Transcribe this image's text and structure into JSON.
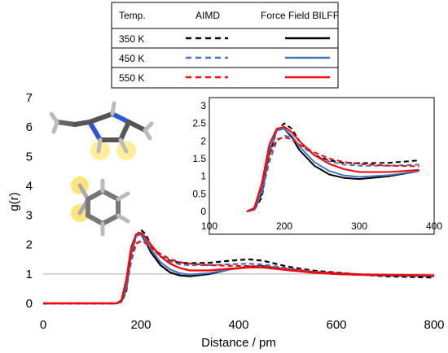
{
  "legend": {
    "headers": [
      "Temp.",
      "AIMD",
      "Force Field BILFF"
    ],
    "rows": [
      {
        "label": "350 K",
        "color": "#000000"
      },
      {
        "label": "450 K",
        "color": "#4472c4"
      },
      {
        "label": "550 K",
        "color": "#ff0000"
      }
    ]
  },
  "chart_data": [
    {
      "type": "line",
      "xlabel": "Distance / pm",
      "ylabel": "g(r)",
      "xlim": [
        0,
        800
      ],
      "ylim": [
        0,
        7
      ],
      "xticks": [
        "0",
        "200",
        "400",
        "600",
        "800"
      ],
      "yticks": [
        "0",
        "1",
        "2",
        "3",
        "4",
        "5",
        "6",
        "7"
      ],
      "reference_line_y": 1,
      "series": [
        {
          "name": "350 K AIMD",
          "style": "dashed",
          "color": "#000000",
          "x": [
            0,
            150,
            160,
            170,
            180,
            190,
            200,
            210,
            220,
            240,
            260,
            280,
            300,
            340,
            380,
            420,
            450,
            500,
            550,
            600,
            650,
            700,
            750,
            800
          ],
          "y": [
            0,
            0,
            0.05,
            0.4,
            1.6,
            2.3,
            2.5,
            2.35,
            2.0,
            1.6,
            1.45,
            1.38,
            1.37,
            1.38,
            1.45,
            1.5,
            1.45,
            1.25,
            1.12,
            1.05,
            0.98,
            0.92,
            0.9,
            0.88
          ]
        },
        {
          "name": "350 K BILFF",
          "style": "solid",
          "color": "#000000",
          "x": [
            0,
            150,
            160,
            170,
            180,
            190,
            200,
            210,
            220,
            240,
            260,
            280,
            300,
            340,
            380,
            420,
            450,
            500,
            550,
            600,
            650,
            700,
            750,
            800
          ],
          "y": [
            0,
            0,
            0.05,
            0.5,
            1.7,
            2.3,
            2.35,
            2.1,
            1.75,
            1.3,
            1.05,
            0.95,
            0.92,
            1.0,
            1.15,
            1.25,
            1.27,
            1.15,
            1.05,
            1.0,
            0.97,
            0.95,
            0.94,
            0.93
          ]
        },
        {
          "name": "450 K AIMD",
          "style": "dashed",
          "color": "#4472c4",
          "x": [
            0,
            150,
            160,
            170,
            180,
            190,
            200,
            210,
            220,
            240,
            260,
            280,
            300,
            340,
            380,
            420,
            450,
            500,
            550,
            600,
            650,
            700,
            750,
            800
          ],
          "y": [
            0,
            0,
            0.06,
            0.5,
            1.4,
            2.0,
            2.15,
            2.1,
            1.9,
            1.6,
            1.42,
            1.33,
            1.3,
            1.3,
            1.33,
            1.35,
            1.32,
            1.2,
            1.08,
            1.02,
            0.98,
            0.96,
            0.95,
            0.94
          ]
        },
        {
          "name": "450 K BILFF",
          "style": "solid",
          "color": "#4472c4",
          "x": [
            0,
            150,
            160,
            170,
            180,
            190,
            200,
            210,
            220,
            240,
            260,
            280,
            300,
            340,
            380,
            420,
            450,
            500,
            550,
            600,
            650,
            700,
            750,
            800
          ],
          "y": [
            0,
            0,
            0.06,
            0.6,
            1.75,
            2.3,
            2.35,
            2.15,
            1.85,
            1.4,
            1.15,
            1.02,
            0.98,
            1.03,
            1.15,
            1.23,
            1.25,
            1.15,
            1.05,
            1.0,
            0.97,
            0.96,
            0.95,
            0.95
          ]
        },
        {
          "name": "550 K AIMD",
          "style": "dashed",
          "color": "#ff0000",
          "x": [
            0,
            150,
            160,
            170,
            180,
            190,
            200,
            210,
            220,
            240,
            260,
            280,
            300,
            340,
            380,
            420,
            450,
            500,
            550,
            600,
            650,
            700,
            750,
            800
          ],
          "y": [
            0,
            0,
            0.1,
            0.7,
            1.6,
            2.05,
            2.1,
            2.05,
            1.9,
            1.68,
            1.5,
            1.4,
            1.35,
            1.3,
            1.28,
            1.27,
            1.25,
            1.17,
            1.08,
            1.03,
            0.99,
            0.97,
            0.96,
            0.95
          ]
        },
        {
          "name": "550 K BILFF",
          "style": "solid",
          "color": "#ff0000",
          "x": [
            0,
            150,
            160,
            170,
            180,
            190,
            200,
            210,
            220,
            240,
            260,
            280,
            300,
            340,
            380,
            420,
            450,
            500,
            550,
            600,
            650,
            700,
            750,
            800
          ],
          "y": [
            0,
            0,
            0.1,
            0.8,
            1.9,
            2.35,
            2.4,
            2.25,
            2.0,
            1.6,
            1.35,
            1.2,
            1.12,
            1.12,
            1.18,
            1.22,
            1.22,
            1.13,
            1.05,
            1.0,
            0.98,
            0.97,
            0.96,
            0.95
          ]
        }
      ]
    },
    {
      "type": "line",
      "inset": true,
      "xlim": [
        100,
        400
      ],
      "ylim": [
        0,
        3
      ],
      "xticks": [
        "100",
        "200",
        "300",
        "400"
      ],
      "yticks": [
        "0",
        "0.5",
        "1",
        "1.5",
        "2",
        "2.5",
        "3"
      ],
      "same_series_as_main": true
    }
  ]
}
